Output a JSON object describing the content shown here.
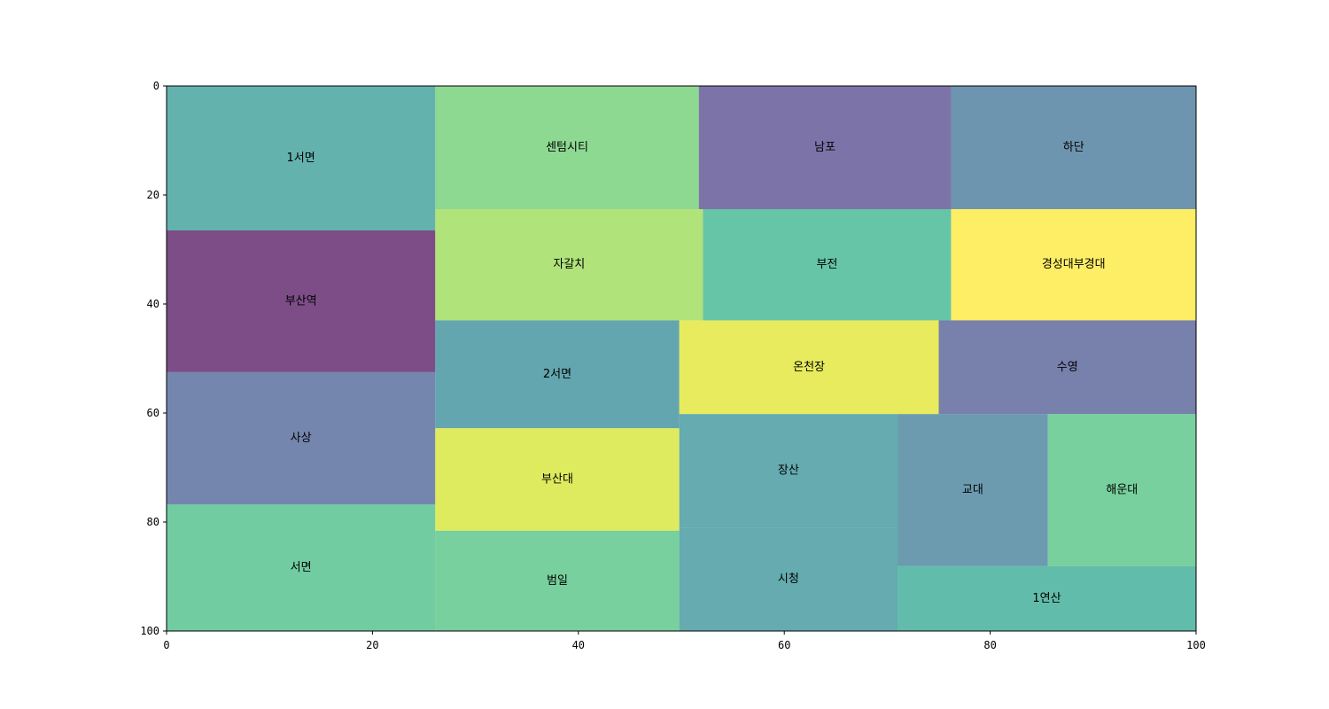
{
  "chart_data": {
    "type": "treemap",
    "title": "",
    "xlabel": "",
    "ylabel": "",
    "xlim": [
      0,
      100
    ],
    "ylim": [
      100,
      0
    ],
    "x_ticks": [
      "0",
      "20",
      "40",
      "60",
      "80",
      "100"
    ],
    "y_ticks": [
      "0",
      "20",
      "40",
      "60",
      "80",
      "100"
    ],
    "alpha": 0.7,
    "rects": [
      {
        "label": "1서면",
        "x": 0,
        "y": 0,
        "w": 26.1,
        "h": 26.5,
        "color": "#21918c"
      },
      {
        "label": "부산역",
        "x": 0,
        "y": 26.5,
        "w": 26.1,
        "h": 26.0,
        "color": "#440154"
      },
      {
        "label": "사상",
        "x": 0,
        "y": 52.5,
        "w": 26.1,
        "h": 24.3,
        "color": "#3b528b"
      },
      {
        "label": "서면",
        "x": 0,
        "y": 76.8,
        "w": 26.1,
        "h": 23.2,
        "color": "#35b779"
      },
      {
        "label": "센텀시티",
        "x": 26.1,
        "y": 0,
        "w": 25.6,
        "h": 22.6,
        "color": "#5ec962"
      },
      {
        "label": "남포",
        "x": 51.7,
        "y": 0,
        "w": 24.5,
        "h": 22.6,
        "color": "#443983"
      },
      {
        "label": "하단",
        "x": 76.2,
        "y": 0,
        "w": 23.8,
        "h": 22.6,
        "color": "#31688e"
      },
      {
        "label": "자갈치",
        "x": 26.1,
        "y": 22.6,
        "w": 26.0,
        "h": 20.4,
        "color": "#90d743"
      },
      {
        "label": "부전",
        "x": 52.1,
        "y": 22.6,
        "w": 24.1,
        "h": 20.4,
        "color": "#25ab82"
      },
      {
        "label": "경성대부경대",
        "x": 76.2,
        "y": 22.6,
        "w": 23.8,
        "h": 20.4,
        "color": "#fde725"
      },
      {
        "label": "2서면",
        "x": 26.1,
        "y": 43.0,
        "w": 23.7,
        "h": 19.8,
        "color": "#21808d"
      },
      {
        "label": "온천장",
        "x": 49.8,
        "y": 43.0,
        "w": 25.2,
        "h": 17.2,
        "color": "#dde318"
      },
      {
        "label": "수영",
        "x": 75.0,
        "y": 43.0,
        "w": 25.0,
        "h": 17.2,
        "color": "#3e4a89"
      },
      {
        "label": "부산대",
        "x": 26.1,
        "y": 62.8,
        "w": 23.7,
        "h": 18.8,
        "color": "#d2e21b"
      },
      {
        "label": "범일",
        "x": 26.1,
        "y": 81.6,
        "w": 23.7,
        "h": 18.4,
        "color": "#3dbc74"
      },
      {
        "label": "장산",
        "x": 49.8,
        "y": 60.2,
        "w": 21.2,
        "h": 20.8,
        "color": "#23888e"
      },
      {
        "label": "시청",
        "x": 49.8,
        "y": 81.0,
        "w": 21.2,
        "h": 19.0,
        "color": "#23888e"
      },
      {
        "label": "교대",
        "x": 71.0,
        "y": 60.2,
        "w": 14.6,
        "h": 27.9,
        "color": "#2d708e"
      },
      {
        "label": "해운대",
        "x": 85.6,
        "y": 60.2,
        "w": 14.4,
        "h": 27.9,
        "color": "#3dbc74"
      },
      {
        "label": "1연산",
        "x": 71.0,
        "y": 88.1,
        "w": 29.0,
        "h": 11.9,
        "color": "#1fa088"
      }
    ]
  }
}
